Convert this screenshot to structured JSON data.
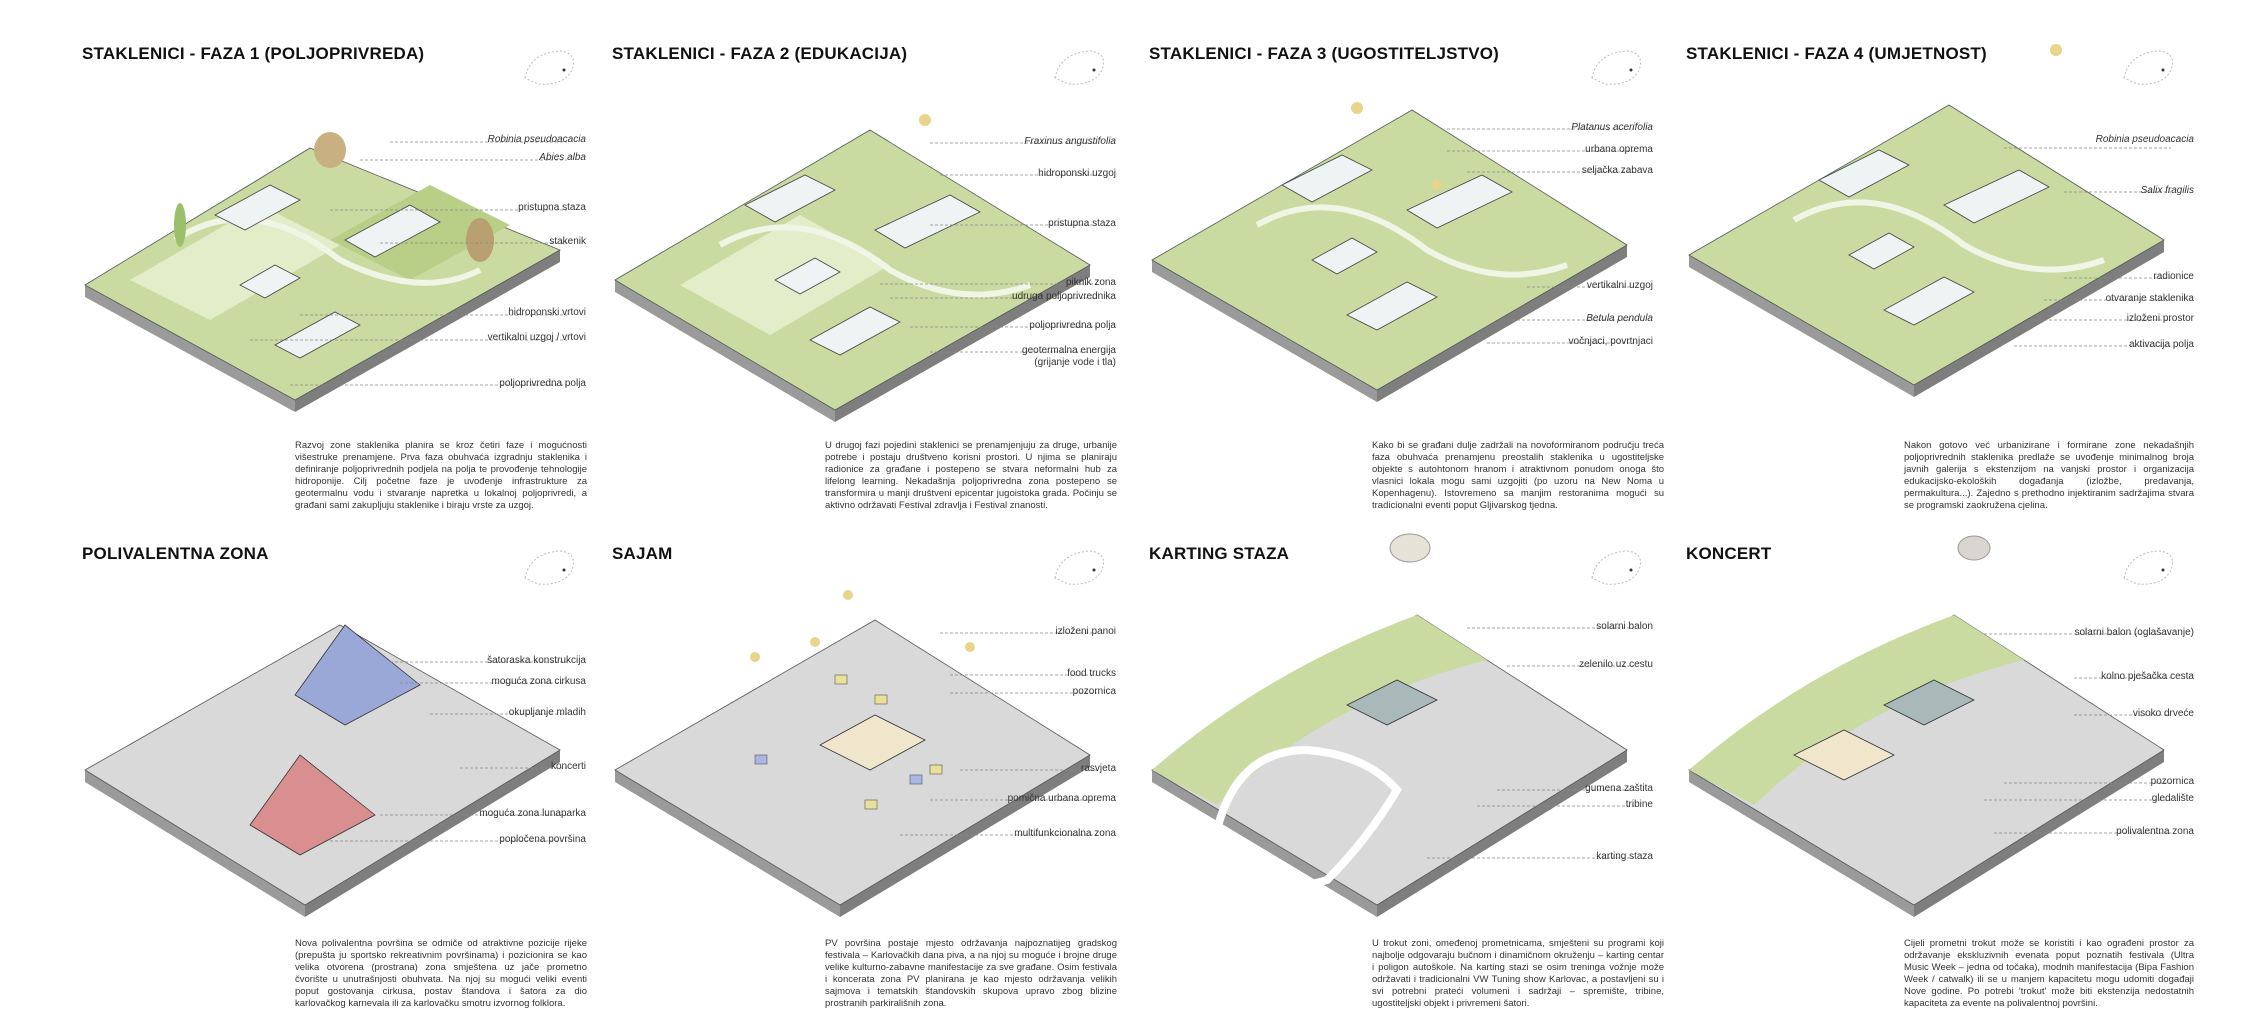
{
  "panels": [
    {
      "title": "STAKLENICI - FAZA 1 (POLJOPRIVREDA)",
      "labels": [
        {
          "text": "Robinia pseudoacacia",
          "italic": true
        },
        {
          "text": "Abies alba",
          "italic": true
        },
        {
          "text": "pristupna staza",
          "italic": false
        },
        {
          "text": "stakenik",
          "italic": false
        },
        {
          "text": "hidroponski vrtovi",
          "italic": false
        },
        {
          "text": "vertikalni uzgoj / vrtovi",
          "italic": false
        },
        {
          "text": "poljoprivredna polja",
          "italic": false
        }
      ],
      "description": "Razvoj zone staklenika planira se kroz četiri faze i mogućnosti višestruke prenamjene. Prva faza obuhvaća izgradnju staklenika i definiranje poljoprivrednih podjela na polja te provođenje tehnologije hidroponije. Cilj početne faze je uvođenje infrastrukture za geotermalnu vodu i stvaranje napretka u lokalnoj poljoprivredi, a građani sami zakupljuju staklenike i biraju vrste za uzgoj."
    },
    {
      "title": "STAKLENICI - FAZA 2 (EDUKACIJA)",
      "labels": [
        {
          "text": "Fraxinus angustifolia",
          "italic": true
        },
        {
          "text": "hidroponski uzgoj",
          "italic": false
        },
        {
          "text": "pristupna staza",
          "italic": false
        },
        {
          "text": "piknik zona",
          "italic": false
        },
        {
          "text": "udruga poljoprivrednika",
          "italic": false
        },
        {
          "text": "poljoprivredna polja",
          "italic": false
        },
        {
          "text": "geotermalna energija",
          "italic": false
        },
        {
          "text": "(grijanje vode i tla)",
          "italic": false
        }
      ],
      "description": "U drugoj fazi pojedini staklenici se prenamjenjuju za druge, urbanije potrebe i postaju društveno korisni prostori. U njima se planiraju radionice za građane i postepeno se stvara neformalni hub za lifelong learning. Nekadašnja poljoprivredna zona postepeno se transformira u manji društveni epicentar jugoistoka grada. Počinju se aktivno održavati Festival zdravlja i Festival znanosti."
    },
    {
      "title": "STAKLENICI - FAZA 3 (UGOSTITELJSTVO)",
      "labels": [
        {
          "text": "Platanus acerifolia",
          "italic": true
        },
        {
          "text": "urbana oprema",
          "italic": false
        },
        {
          "text": "seljačka zabava",
          "italic": false
        },
        {
          "text": "vertikalni uzgoj",
          "italic": false
        },
        {
          "text": "Betula pendula",
          "italic": true
        },
        {
          "text": "vočnjaci, povrtnjaci",
          "italic": false
        }
      ],
      "description": "Kako bi se građani dulje zadržali na novoformiranom području treća faza obuhvaća prenamjenu preostalih staklenika u ugostiteljske objekte s autohtonom hranom i atraktivnom ponudom onoga što vlasnici lokala mogu sami uzgojiti (po uzoru na New Noma u Kopenhagenu). Istovremeno sa manjim restoranima mogući su tradicionalni eventi poput Gljivarskog tjedna."
    },
    {
      "title": "STAKLENICI - FAZA 4 (UMJETNOST)",
      "labels": [
        {
          "text": "Robinia pseudoacacia",
          "italic": true
        },
        {
          "text": "Salix fragilis",
          "italic": true
        },
        {
          "text": "radionice",
          "italic": false
        },
        {
          "text": "otvaranje staklenika",
          "italic": false
        },
        {
          "text": "izloženi prostor",
          "italic": false
        },
        {
          "text": "aktivacija polja",
          "italic": false
        }
      ],
      "description": "Nakon gotovo već urbanizirane i formirane zone nekadašnjih poljoprivrednih staklenika predlaže se uvođenje minimalnog broja javnih galerija s ekstenzijom na vanjski prostor i organizacija edukacijsko-ekoloških događanja (izložbe, predavanja, permakultura...). Zajedno s prethodno injektiranim sadržajima stvara se programski zaokružena cjelina."
    },
    {
      "title": "POLIVALENTNA ZONA",
      "labels": [
        {
          "text": "šatoraska konstrukcija",
          "italic": false
        },
        {
          "text": "moguća zona cirkusa",
          "italic": false
        },
        {
          "text": "okupljanje mladih",
          "italic": false
        },
        {
          "text": "koncerti",
          "italic": false
        },
        {
          "text": "moguća zona lunaparka",
          "italic": false
        },
        {
          "text": "popločena površina",
          "italic": false
        }
      ],
      "description": "Nova polivalentna površina se odmiče od atraktivne pozicije rijeke (prepušta ju sportsko rekreativnim površinama) i pozicionira se kao velika otvorena (prostrana) zona smještena uz jače prometno čvorište u unutrašnjosti obuhvata. Na njoj su mogući veliki eventi poput gostovanja cirkusa, postav štandova i šatora za dio karlovačkog karnevala ili za karlovačku smotru izvornog folklora."
    },
    {
      "title": "SAJAM",
      "labels": [
        {
          "text": "izloženi panoi",
          "italic": false
        },
        {
          "text": "food trucks",
          "italic": false
        },
        {
          "text": "pozornica",
          "italic": false
        },
        {
          "text": "rasvjeta",
          "italic": false
        },
        {
          "text": "pomična urbana oprema",
          "italic": false
        },
        {
          "text": "multifunkcionalna zona",
          "italic": false
        }
      ],
      "description": "PV površina postaje mjesto održavanja najpoznatijeg gradskog festivala – Karlovačkih dana piva, a na njoj su moguće i brojne druge velike kulturno-zabavne manifestacije za sve građane. Osim festivala i koncerata zona PV planirana je kao mjesto održavanja velikih sajmova i tematskih štandovskih skupova upravo zbog blizine prostranih parkirališnih zona."
    },
    {
      "title": "KARTING STAZA",
      "labels": [
        {
          "text": "solarni balon",
          "italic": false
        },
        {
          "text": "zelenilo uz cestu",
          "italic": false
        },
        {
          "text": "gumena zaštita",
          "italic": false
        },
        {
          "text": "tribine",
          "italic": false
        },
        {
          "text": "karting staza",
          "italic": false
        }
      ],
      "description": "U trokut zoni, omeđenoj prometnicama, smješteni su programi koji najbolje odgovaraju bučnom i dinamičnom okruženju – karting centar i poligon autoškole. Na karting stazi se osim treninga vožnje može održavati i tradicionalni VW Tuning show Karlovac, a postavljeni su i svi potrebni prateći volumeni i sadržaji – spremište, tribine, ugostiteljski objekt i privremeni šatori."
    },
    {
      "title": "KONCERT",
      "labels": [
        {
          "text": "solarni balon (oglašavanje)",
          "italic": false
        },
        {
          "text": "kolno pješačka cesta",
          "italic": false
        },
        {
          "text": "visoko drveće",
          "italic": false
        },
        {
          "text": "pozornica",
          "italic": false
        },
        {
          "text": "gledalište",
          "italic": false
        },
        {
          "text": "polivalentna zona",
          "italic": false
        }
      ],
      "description": "Cijeli prometni trokut može se koristiti i kao ograđeni prostor za održavanje ekskluzivnih evenata poput poznatih festivala (Ultra Music Week – jedna od točaka), modnih manifestacija (Bipa Fashion Week / catwalk) ili se u manjem kapacitetu mogu udomiti događaji Nove godine. Po potrebi 'trokut' može biti ekstenzija nedostatnih kapaciteta za evente na polivalentnoj površini."
    }
  ],
  "colors": {
    "grass": "#c9dba0",
    "grass_light": "#e3edc9",
    "paving": "#d9d9d9",
    "slab_side": "#9a9a9a",
    "tent_blue": "#9aa8d8",
    "tent_red": "#d98f8f",
    "balloon": "#e8d48a"
  }
}
